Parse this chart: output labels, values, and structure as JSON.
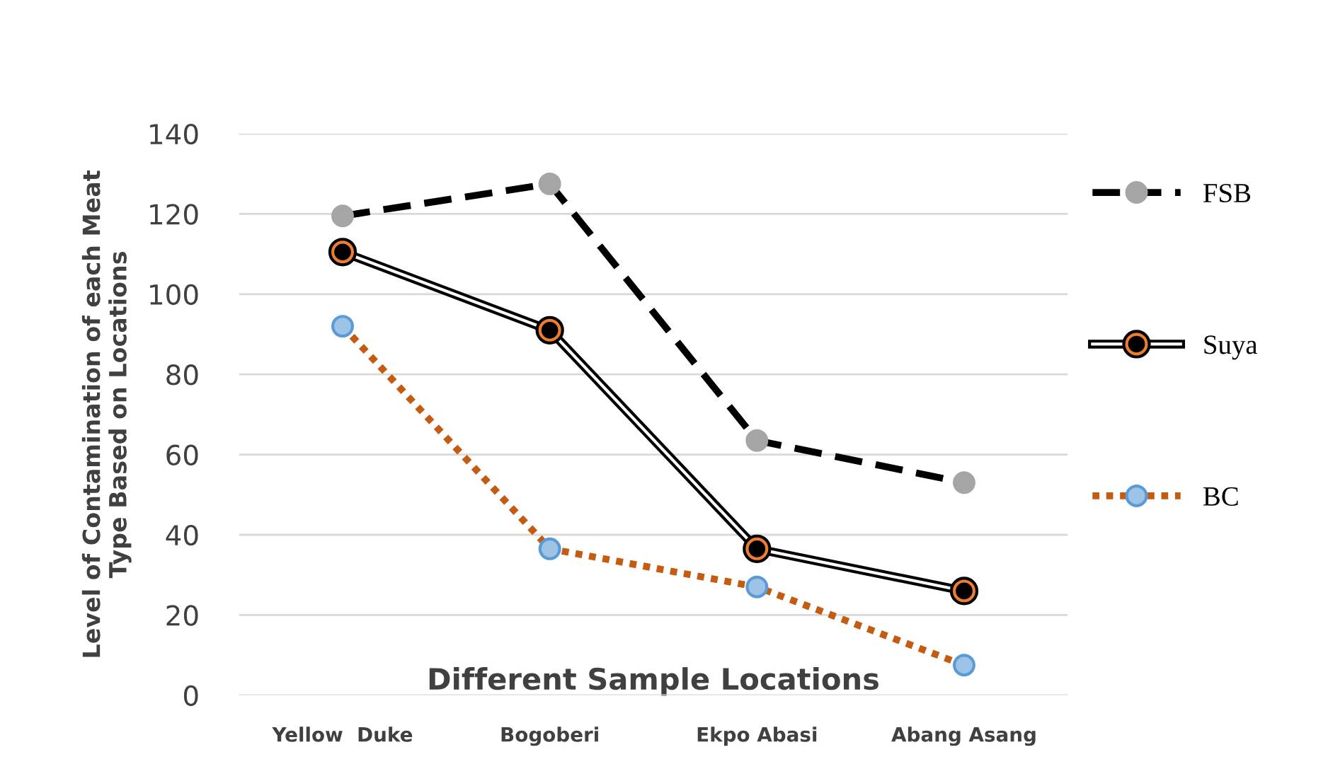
{
  "chart_data": {
    "type": "line",
    "xlabel": "Different Sample Locations",
    "ylabel": "Level of Contamination of each Meat\nType Based on Locations",
    "categories": [
      "Yellow  Duke",
      "Bogoberi",
      "Ekpo Abasi",
      "Abang Asang"
    ],
    "series": [
      {
        "name": "FSB",
        "color": "#000000",
        "line_style": "dashed",
        "marker": "circle",
        "values": [
          119.5,
          127.5,
          63.5,
          53
        ]
      },
      {
        "name": "Suya",
        "color": "#000000",
        "line_style": "solid",
        "marker": "circle",
        "values": [
          110.5,
          91,
          36.5,
          26
        ]
      },
      {
        "name": "BC",
        "color": "#c55a11",
        "line_style": "dotted",
        "marker": "circle",
        "values": [
          92,
          36.5,
          27,
          7.5
        ]
      }
    ],
    "ylim": [
      0,
      140
    ],
    "yticks": [
      0,
      20,
      40,
      60,
      80,
      100,
      120,
      140
    ],
    "grid": "y",
    "legend": "right"
  }
}
